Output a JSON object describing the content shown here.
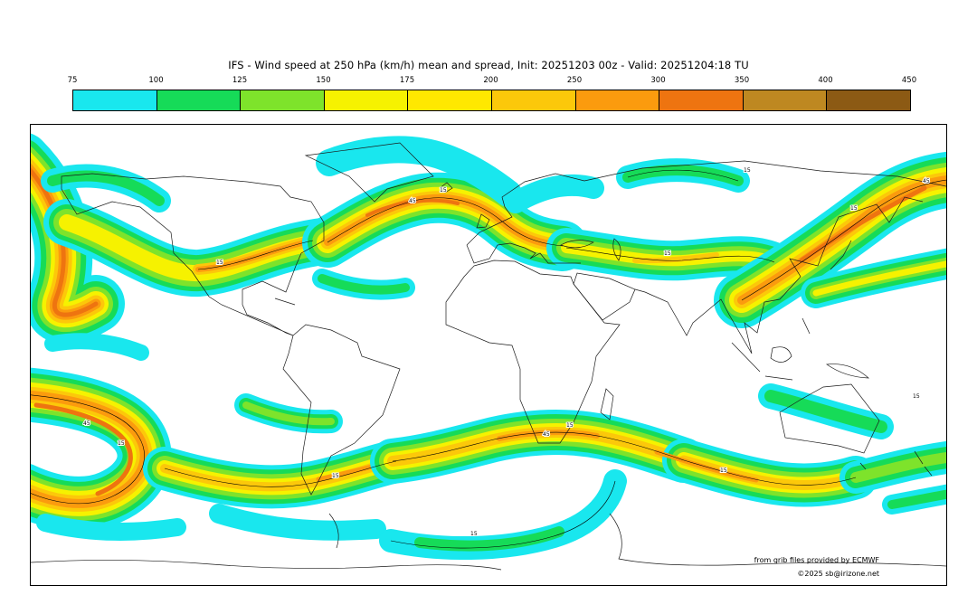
{
  "title": "IFS - Wind speed at 250 hPa (km/h) mean and spread, Init: 20251203 00z - Valid: 20251204:18 TU",
  "colorbar": {
    "ticks": [
      "75",
      "100",
      "125",
      "150",
      "175",
      "200",
      "250",
      "300",
      "350",
      "400",
      "450"
    ],
    "colors": [
      "#19E7EE",
      "#16DB58",
      "#7EE32B",
      "#F6F200",
      "#FFE800",
      "#FCC80A",
      "#FB9B0E",
      "#EE7410",
      "#BE8821",
      "#8C5A14"
    ]
  },
  "contour_labels": {
    "low": "15",
    "high": "45"
  },
  "attribution": {
    "line1": "from grib files provided by ECMWF",
    "line2": "©2025 sb@irizone.net"
  },
  "chart_data": {
    "type": "heatmap",
    "title": "IFS - Wind speed at 250 hPa (km/h) mean and spread",
    "init": "20251203 00z",
    "valid": "20251204:18 TU",
    "units": "km/h",
    "variable": "250 hPa wind speed: ensemble mean (color shading) and ensemble spread (thin black contours labeled 15 and 45)",
    "projection": "global equirectangular world map (90N-90S, 180W-180E)",
    "legend_position": "top horizontal colorbar",
    "levels": [
      75,
      100,
      125,
      150,
      175,
      200,
      250,
      300,
      350,
      400,
      450
    ],
    "level_colors": [
      "#19E7EE",
      "#16DB58",
      "#7EE32B",
      "#F6F200",
      "#FFE800",
      "#FCC80A",
      "#FB9B0E",
      "#EE7410",
      "#BE8821",
      "#8C5A14"
    ],
    "spread_contour_levels": [
      15,
      45
    ],
    "features": [
      "strong jet streak (250-350 km/h core) along eastern Pacific / west coast of North America at left map edge",
      "jet band across central North America with 200-250 km/h core over the Great Lakes / northeast US",
      "intense North Atlantic jet (250-300 km/h) arcing northeast toward Europe",
      "moderate 150-200 km/h band across central Asia",
      "very strong East Asia / northwest Pacific jet (250-350 km/h) exiting the right map edge",
      "cyan 75-100 km/h patches over the Arctic, Siberia and Gulf of Alaska",
      "continuous Southern Hemisphere circumpolar jet with 250-300 km/h maxima near the southeast Pacific, south Indian Ocean and south of Australia",
      "cyan subpolar arcs near the Antarctic coast"
    ],
    "annotations": [
      "from grib files provided by ECMWF",
      "©2025 sb@irizone.net"
    ]
  }
}
